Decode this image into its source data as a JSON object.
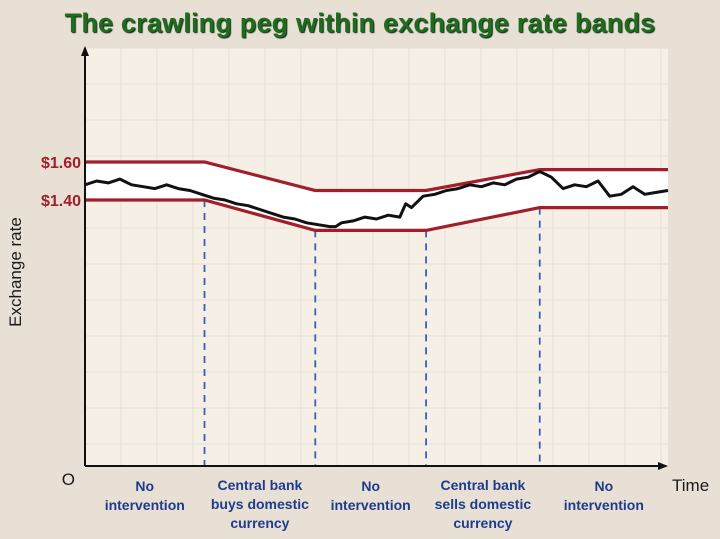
{
  "title": "The crawling peg within exchange rate bands",
  "colors": {
    "band": "#a01f2a",
    "rate_line": "#111111",
    "divider": "#3560b8",
    "title": "#1f6b1f",
    "region_text": "#1e3c8c",
    "plot_bg": "#f5efe6",
    "page_bg": "#e8e0d5"
  },
  "chart_data": {
    "type": "line",
    "title": "The crawling peg within exchange rate bands",
    "xlabel": "Time",
    "ylabel": "Exchange rate",
    "origin_label": "O",
    "xlim": [
      0,
      100
    ],
    "ylim": [
      0,
      2.2
    ],
    "yticks": [
      {
        "value": 1.6,
        "label": "$1.60"
      },
      {
        "value": 1.4,
        "label": "$1.40"
      }
    ],
    "grid": true,
    "series": [
      {
        "role": "upper_band",
        "x": [
          0,
          20.5,
          39.5,
          58.5,
          78,
          100
        ],
        "y": [
          1.6,
          1.6,
          1.45,
          1.45,
          1.56,
          1.56
        ]
      },
      {
        "role": "lower_band",
        "x": [
          0,
          20.5,
          39.5,
          58.5,
          78,
          100
        ],
        "y": [
          1.4,
          1.4,
          1.24,
          1.24,
          1.36,
          1.36
        ]
      },
      {
        "role": "exchange_rate",
        "x": [
          0,
          2,
          4,
          6,
          8,
          10,
          12,
          14,
          16,
          18,
          20,
          22,
          24,
          26,
          28,
          30,
          32,
          34,
          36,
          38,
          40,
          42,
          43,
          44,
          46,
          48,
          50,
          52,
          54,
          55,
          56,
          58,
          60,
          62,
          64,
          66,
          68,
          70,
          72,
          74,
          76,
          78,
          80,
          82,
          84,
          86,
          88,
          90,
          92,
          94,
          96,
          98,
          100
        ],
        "y": [
          1.48,
          1.5,
          1.49,
          1.51,
          1.48,
          1.47,
          1.46,
          1.48,
          1.46,
          1.45,
          1.43,
          1.41,
          1.4,
          1.38,
          1.37,
          1.35,
          1.33,
          1.31,
          1.3,
          1.28,
          1.27,
          1.26,
          1.26,
          1.28,
          1.29,
          1.31,
          1.3,
          1.32,
          1.31,
          1.38,
          1.36,
          1.42,
          1.43,
          1.45,
          1.46,
          1.48,
          1.47,
          1.49,
          1.48,
          1.51,
          1.52,
          1.55,
          1.52,
          1.46,
          1.48,
          1.47,
          1.5,
          1.42,
          1.43,
          1.47,
          1.43,
          1.44,
          1.45
        ]
      }
    ],
    "dividers_x": [
      20.5,
      39.5,
      58.5,
      78
    ],
    "regions": [
      {
        "label_lines": [
          "No",
          "intervention"
        ]
      },
      {
        "label_lines": [
          "Central bank",
          "buys domestic",
          "currency"
        ]
      },
      {
        "label_lines": [
          "No",
          "intervention"
        ]
      },
      {
        "label_lines": [
          "Central bank",
          "sells domestic",
          "currency"
        ]
      },
      {
        "label_lines": [
          "No",
          "intervention"
        ]
      }
    ]
  }
}
